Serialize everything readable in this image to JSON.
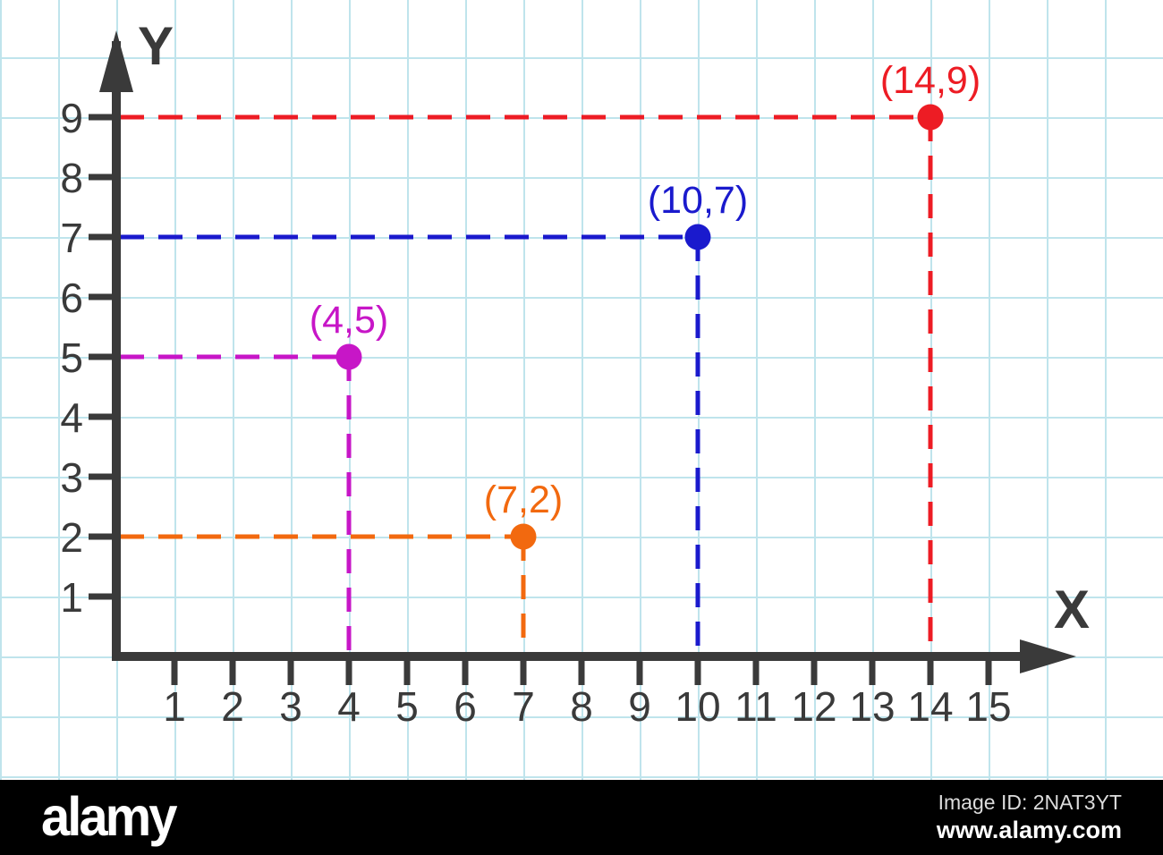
{
  "chart_data": {
    "type": "scatter",
    "title": "",
    "x_axis": {
      "label": "X",
      "ticks": [
        1,
        2,
        3,
        4,
        5,
        6,
        7,
        8,
        9,
        10,
        11,
        12,
        13,
        14,
        15
      ],
      "min": 0,
      "max": 16.5
    },
    "y_axis": {
      "label": "Y",
      "ticks": [
        1,
        2,
        3,
        4,
        5,
        6,
        7,
        8,
        9
      ],
      "min": 0,
      "max": 10.4
    },
    "grid": true,
    "guide_lines": {
      "style": "dashed",
      "to": "both-axes"
    },
    "points": [
      {
        "x": 4,
        "y": 5,
        "label": "(4,5)",
        "color": "#c716c7"
      },
      {
        "x": 7,
        "y": 2,
        "label": "(7,2)",
        "color": "#f2690f"
      },
      {
        "x": 10,
        "y": 7,
        "label": "(10,7)",
        "color": "#1a1acd"
      },
      {
        "x": 14,
        "y": 9,
        "label": "(14,9)",
        "color": "#ed1c24"
      }
    ]
  },
  "style": {
    "axis_color": "#3a3a3a",
    "tick_label_color": "#3a3a3a",
    "grid_color": "#bfe4ec",
    "background": "#ffffff"
  },
  "watermark": {
    "brand": "alamy",
    "image_id": "Image ID: 2NAT3YT",
    "website": "www.alamy.com",
    "bar_color": "#000000"
  }
}
